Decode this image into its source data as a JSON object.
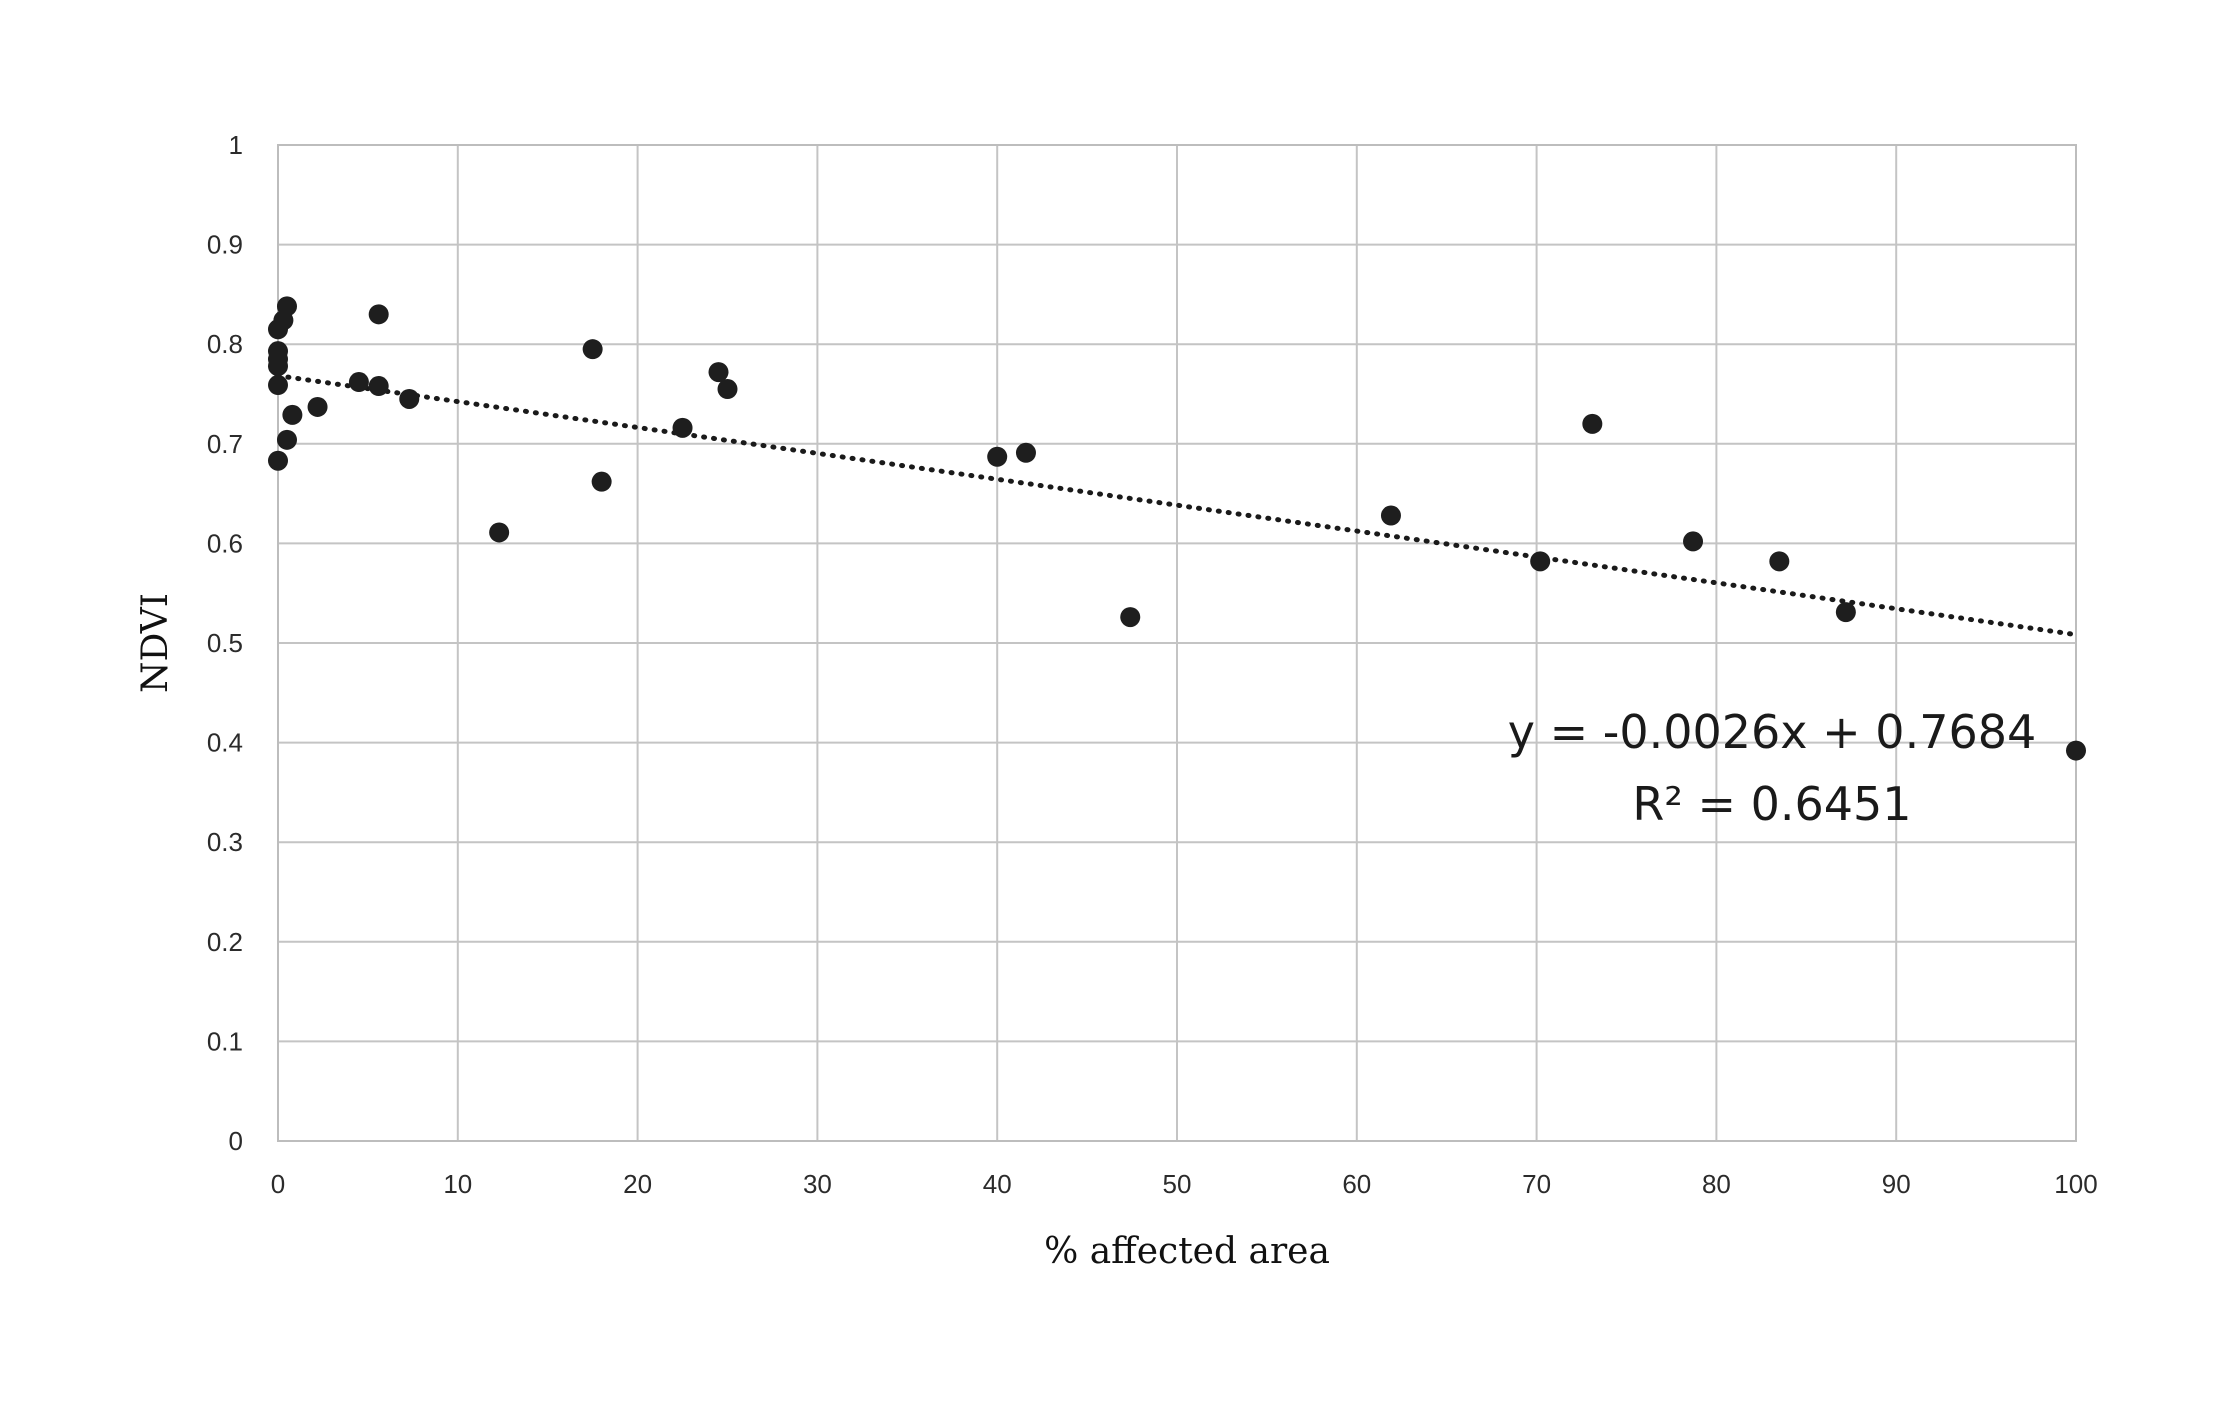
{
  "chart_data": {
    "type": "scatter",
    "xlabel": "% affected area",
    "ylabel": "NDVI",
    "xlim": [
      0,
      100
    ],
    "ylim": [
      0,
      1
    ],
    "xticks": [
      "0",
      "10",
      "20",
      "30",
      "40",
      "50",
      "60",
      "70",
      "80",
      "90",
      "100"
    ],
    "yticks": [
      "0",
      "0.1",
      "0.2",
      "0.3",
      "0.4",
      "0.5",
      "0.6",
      "0.7",
      "0.8",
      "0.9",
      "1"
    ],
    "grid": true,
    "points": [
      {
        "x": 0,
        "y": 0.683
      },
      {
        "x": 0,
        "y": 0.759
      },
      {
        "x": 0,
        "y": 0.778
      },
      {
        "x": 0,
        "y": 0.785
      },
      {
        "x": 0,
        "y": 0.793
      },
      {
        "x": 0,
        "y": 0.815
      },
      {
        "x": 0.3,
        "y": 0.824
      },
      {
        "x": 0.5,
        "y": 0.838
      },
      {
        "x": 0.5,
        "y": 0.704
      },
      {
        "x": 0.8,
        "y": 0.729
      },
      {
        "x": 2.2,
        "y": 0.737
      },
      {
        "x": 4.5,
        "y": 0.762
      },
      {
        "x": 5.6,
        "y": 0.758
      },
      {
        "x": 5.6,
        "y": 0.83
      },
      {
        "x": 7.3,
        "y": 0.745
      },
      {
        "x": 12.3,
        "y": 0.611
      },
      {
        "x": 17.5,
        "y": 0.795
      },
      {
        "x": 18.0,
        "y": 0.662
      },
      {
        "x": 22.5,
        "y": 0.716
      },
      {
        "x": 24.5,
        "y": 0.772
      },
      {
        "x": 25.0,
        "y": 0.755
      },
      {
        "x": 40.0,
        "y": 0.687
      },
      {
        "x": 41.6,
        "y": 0.691
      },
      {
        "x": 47.4,
        "y": 0.526
      },
      {
        "x": 61.9,
        "y": 0.628
      },
      {
        "x": 70.2,
        "y": 0.582
      },
      {
        "x": 73.1,
        "y": 0.72
      },
      {
        "x": 78.7,
        "y": 0.602
      },
      {
        "x": 83.5,
        "y": 0.582
      },
      {
        "x": 87.2,
        "y": 0.531
      },
      {
        "x": 100,
        "y": 0.392
      }
    ],
    "trendline": {
      "type": "linear",
      "slope": -0.0026,
      "intercept": 0.7684,
      "style": "dotted",
      "equation": "y = -0.0026x + 0.7684",
      "r_squared": "R² = 0.6451"
    },
    "colors": {
      "points": "#1e1e1e",
      "grid": "#c4c4c4",
      "trendline": "#1a1a1a"
    }
  }
}
